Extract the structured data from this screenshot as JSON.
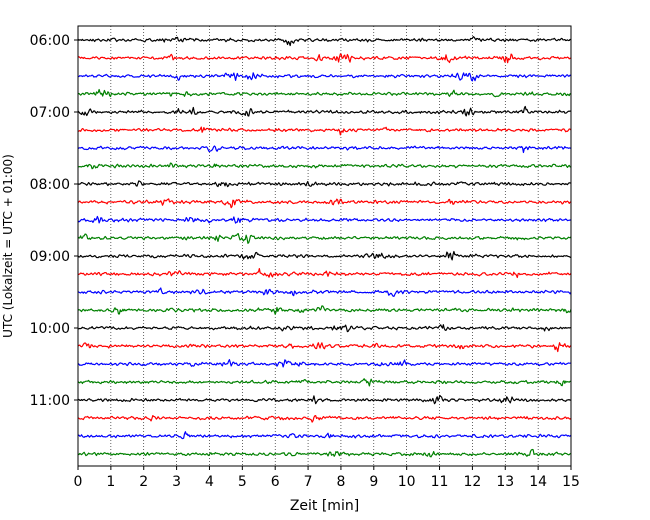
{
  "chart_data": {
    "type": "line",
    "title": "",
    "xlabel": "Zeit  [min]",
    "ylabel": "UTC (Lokalzeit = UTC + 01:00)",
    "xlim": [
      0,
      15
    ],
    "x_ticks": [
      0,
      1,
      2,
      3,
      4,
      5,
      6,
      7,
      8,
      9,
      10,
      11,
      12,
      13,
      14,
      15
    ],
    "x_tick_labels": [
      "0",
      "1",
      "2",
      "3",
      "4",
      "5",
      "6",
      "7",
      "8",
      "9",
      "10",
      "11",
      "12",
      "13",
      "14",
      "15"
    ],
    "y_tick_labels": [
      "06:00",
      "07:00",
      "08:00",
      "09:00",
      "10:00",
      "11:00"
    ],
    "grid": "vertical-dotted",
    "trace_minutes": 15,
    "colors": [
      "#000000",
      "#ff0000",
      "#0000ff",
      "#008000"
    ],
    "traces": [
      "06:00",
      "06:15",
      "06:30",
      "06:45",
      "07:00",
      "07:15",
      "07:30",
      "07:45",
      "08:00",
      "08:15",
      "08:30",
      "08:45",
      "09:00",
      "09:15",
      "09:30",
      "09:45",
      "10:00",
      "10:15",
      "10:30",
      "10:45",
      "11:00",
      "11:15",
      "11:30",
      "11:45"
    ]
  }
}
